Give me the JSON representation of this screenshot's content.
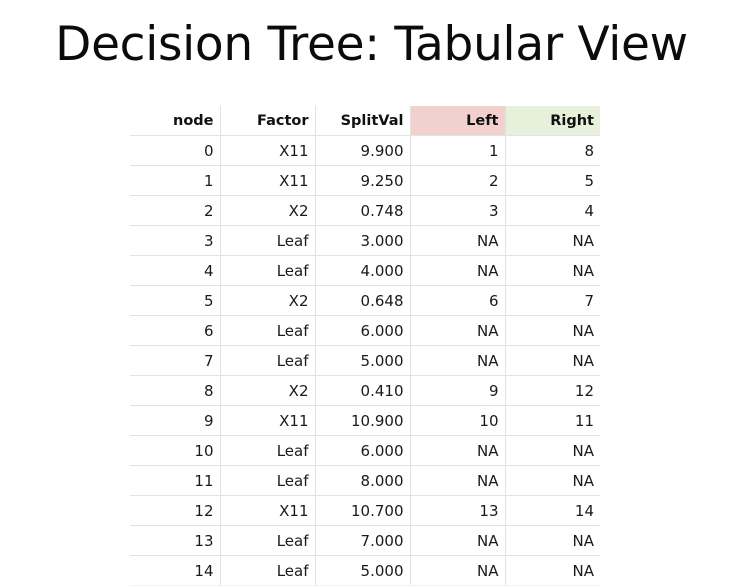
{
  "slide": {
    "title": "Decision Tree: Tabular View"
  },
  "table": {
    "columns": [
      {
        "key": "node",
        "label": "node"
      },
      {
        "key": "factor",
        "label": "Factor"
      },
      {
        "key": "splitval",
        "label": "SplitVal"
      },
      {
        "key": "left",
        "label": "Left",
        "highlight": "#f2d0cd"
      },
      {
        "key": "right",
        "label": "Right",
        "highlight": "#e6f0db"
      }
    ],
    "rows": [
      {
        "node": "0",
        "factor": "X11",
        "splitval": "9.900",
        "left": "1",
        "right": "8"
      },
      {
        "node": "1",
        "factor": "X11",
        "splitval": "9.250",
        "left": "2",
        "right": "5"
      },
      {
        "node": "2",
        "factor": "X2",
        "splitval": "0.748",
        "left": "3",
        "right": "4"
      },
      {
        "node": "3",
        "factor": "Leaf",
        "splitval": "3.000",
        "left": "NA",
        "right": "NA"
      },
      {
        "node": "4",
        "factor": "Leaf",
        "splitval": "4.000",
        "left": "NA",
        "right": "NA"
      },
      {
        "node": "5",
        "factor": "X2",
        "splitval": "0.648",
        "left": "6",
        "right": "7"
      },
      {
        "node": "6",
        "factor": "Leaf",
        "splitval": "6.000",
        "left": "NA",
        "right": "NA"
      },
      {
        "node": "7",
        "factor": "Leaf",
        "splitval": "5.000",
        "left": "NA",
        "right": "NA"
      },
      {
        "node": "8",
        "factor": "X2",
        "splitval": "0.410",
        "left": "9",
        "right": "12"
      },
      {
        "node": "9",
        "factor": "X11",
        "splitval": "10.900",
        "left": "10",
        "right": "11"
      },
      {
        "node": "10",
        "factor": "Leaf",
        "splitval": "6.000",
        "left": "NA",
        "right": "NA"
      },
      {
        "node": "11",
        "factor": "Leaf",
        "splitval": "8.000",
        "left": "NA",
        "right": "NA"
      },
      {
        "node": "12",
        "factor": "X11",
        "splitval": "10.700",
        "left": "13",
        "right": "14"
      },
      {
        "node": "13",
        "factor": "Leaf",
        "splitval": "7.000",
        "left": "NA",
        "right": "NA"
      },
      {
        "node": "14",
        "factor": "Leaf",
        "splitval": "5.000",
        "left": "NA",
        "right": "NA"
      }
    ]
  }
}
